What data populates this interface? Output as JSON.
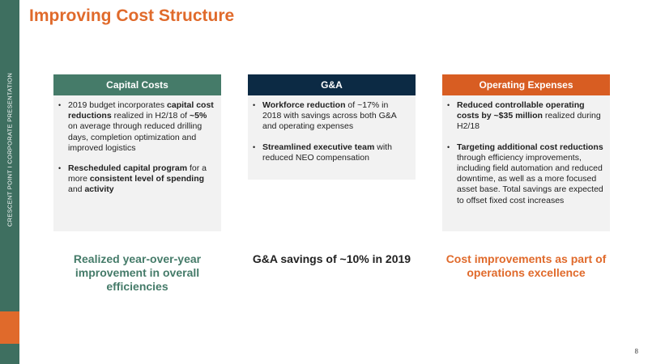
{
  "sidebar": {
    "label": "CRESCENT POINT   I   CORPORATE PRESENTATION"
  },
  "page": {
    "title": "Improving Cost Structure",
    "number": "8"
  },
  "colors": {
    "teal": "#457b69",
    "navy": "#0c2a44",
    "orange": "#d85d22",
    "title_orange": "#e06a2b"
  },
  "columns": [
    {
      "header": "Capital Costs",
      "bullets": [
        [
          {
            "t": "2019 budget incorporates ",
            "b": false
          },
          {
            "t": "capital cost reductions",
            "b": true
          },
          {
            "t": " realized in H2/18 of ",
            "b": false
          },
          {
            "t": "~5%",
            "b": true
          },
          {
            "t": " on average through reduced drilling days, completion optimization and improved logistics",
            "b": false
          }
        ],
        [
          {
            "t": "Rescheduled capital program",
            "b": true
          },
          {
            "t": " for a more ",
            "b": false
          },
          {
            "t": "consistent level of spending",
            "b": true
          },
          {
            "t": " and ",
            "b": false
          },
          {
            "t": "activity",
            "b": true
          }
        ]
      ],
      "summary": "Realized year-over-year improvement in overall efficiencies"
    },
    {
      "header": "G&A",
      "bullets": [
        [
          {
            "t": "Workforce reduction",
            "b": true
          },
          {
            "t": " of ~17% in 2018 with savings across both G&A and operating expenses",
            "b": false
          }
        ],
        [
          {
            "t": "Streamlined executive team",
            "b": true
          },
          {
            "t": " with reduced NEO compensation",
            "b": false
          }
        ]
      ],
      "summary": "G&A savings of ~10% in 2019"
    },
    {
      "header": "Operating Expenses",
      "bullets": [
        [
          {
            "t": "Reduced controllable operating costs by ~$35 million",
            "b": true
          },
          {
            "t": " realized during H2/18",
            "b": false
          }
        ],
        [
          {
            "t": "Targeting additional cost reductions",
            "b": true
          },
          {
            "t": " through efficiency improvements, including field automation and reduced downtime, as well as a more focused asset base. Total savings are expected to offset fixed cost increases",
            "b": false
          }
        ]
      ],
      "summary": "Cost improvements as part of operations excellence"
    }
  ]
}
